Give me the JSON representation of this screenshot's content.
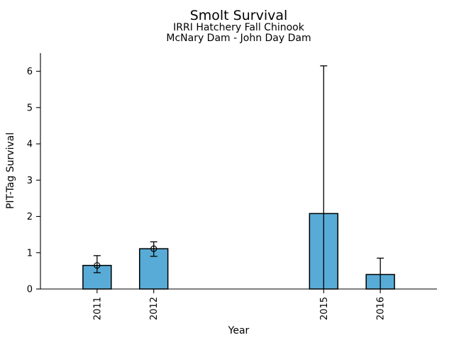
{
  "chart_data": {
    "type": "bar",
    "title": "Smolt Survival",
    "subtitles": [
      "IRRI Hatchery Fall Chinook",
      "McNary Dam - John Day Dam"
    ],
    "xlabel": "Year",
    "ylabel": "PIT-Tag Survival",
    "categories": [
      "2011",
      "2012",
      "2015",
      "2016"
    ],
    "x_values": [
      2011,
      2012,
      2015,
      2016
    ],
    "values": [
      0.65,
      1.11,
      2.08,
      0.4
    ],
    "error_low": [
      0.45,
      0.9,
      0,
      0
    ],
    "error_high": [
      0.92,
      1.3,
      6.15,
      0.85
    ],
    "point_markers": [
      true,
      true,
      false,
      false
    ],
    "y_ticks": [
      0,
      1,
      2,
      3,
      4,
      5,
      6
    ],
    "ylim": [
      0,
      6.5
    ],
    "xlim": [
      2010,
      2017
    ],
    "bar_width_years": 0.5,
    "bar_color": "#58ABD6",
    "bar_edge_color": "#000000",
    "axis_color": "#000000",
    "grid": false,
    "legend": "none"
  }
}
